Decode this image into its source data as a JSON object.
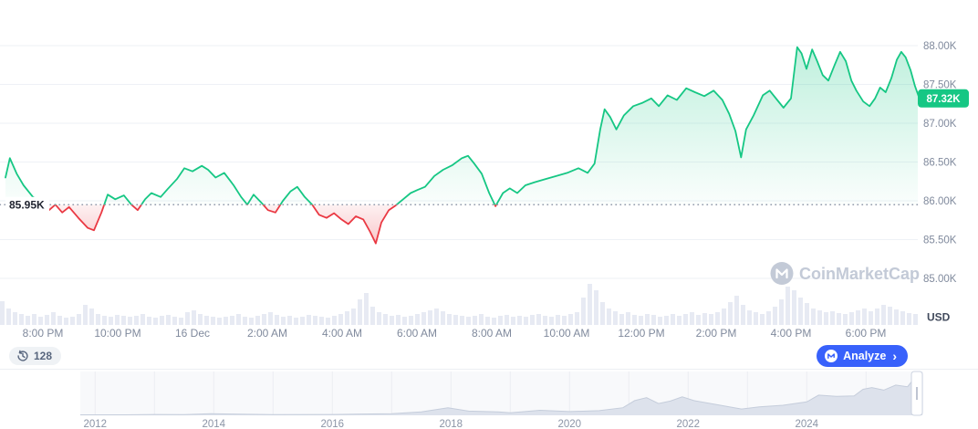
{
  "header": {
    "watermark_text": "CoinMarketCap"
  },
  "price_line": {
    "current_label": "87.32K",
    "baseline_label": "85.95K"
  },
  "axis": {
    "y_labels": [
      "88.00K",
      "87.50K",
      "87.00K",
      "86.50K",
      "86.00K",
      "85.50K",
      "85.00K"
    ],
    "y_values": [
      88,
      87.5,
      87,
      86.5,
      86,
      85.5,
      85
    ],
    "unit_label": "USD",
    "x_labels": [
      "8:00 PM",
      "10:00 PM",
      "16 Dec",
      "2:00 AM",
      "4:00 AM",
      "6:00 AM",
      "8:00 AM",
      "10:00 AM",
      "12:00 PM",
      "2:00 PM",
      "4:00 PM",
      "6:00 PM"
    ],
    "x_minutes": [
      60,
      180,
      300,
      420,
      540,
      660,
      780,
      900,
      1020,
      1140,
      1260,
      1380
    ]
  },
  "controls": {
    "watch_count": "128",
    "analyze_label": "Analyze",
    "analyze_chevron": "›"
  },
  "minimap": {
    "year_labels": [
      "2012",
      "2014",
      "2016",
      "2018",
      "2020",
      "2022",
      "2024"
    ],
    "year_values": [
      2012,
      2014,
      2016,
      2018,
      2020,
      2022,
      2024
    ]
  },
  "colors": {
    "up": "#16c784",
    "down": "#ea3943",
    "accent_blue": "#3861fb",
    "axis_text": "#808a9d",
    "dark_text": "#222531",
    "volume": "#e7eaf3"
  },
  "chart_data": [
    {
      "type": "line",
      "title": "BTC/USD 24h price",
      "x_unit": "minutes since chart start (19:00, day before 16 Dec)",
      "baseline_value": 85.95,
      "current_value": 87.32,
      "ylim": [
        84.5,
        88.5
      ],
      "points": [
        [
          0,
          86.3
        ],
        [
          7,
          86.55
        ],
        [
          18,
          86.35
        ],
        [
          29,
          86.2
        ],
        [
          44,
          86.05
        ],
        [
          59,
          85.98
        ],
        [
          70,
          85.88
        ],
        [
          80,
          85.95
        ],
        [
          91,
          85.85
        ],
        [
          102,
          85.92
        ],
        [
          117,
          85.78
        ],
        [
          132,
          85.65
        ],
        [
          142,
          85.62
        ],
        [
          154,
          85.85
        ],
        [
          164,
          86.08
        ],
        [
          176,
          86.02
        ],
        [
          190,
          86.07
        ],
        [
          202,
          85.95
        ],
        [
          212,
          85.88
        ],
        [
          224,
          86.02
        ],
        [
          234,
          86.1
        ],
        [
          249,
          86.05
        ],
        [
          260,
          86.15
        ],
        [
          275,
          86.28
        ],
        [
          287,
          86.42
        ],
        [
          300,
          86.38
        ],
        [
          315,
          86.45
        ],
        [
          325,
          86.4
        ],
        [
          337,
          86.3
        ],
        [
          351,
          86.36
        ],
        [
          366,
          86.2
        ],
        [
          378,
          86.05
        ],
        [
          388,
          85.95
        ],
        [
          398,
          86.08
        ],
        [
          410,
          85.98
        ],
        [
          421,
          85.88
        ],
        [
          433,
          85.85
        ],
        [
          445,
          86.0
        ],
        [
          457,
          86.12
        ],
        [
          468,
          86.18
        ],
        [
          480,
          86.05
        ],
        [
          492,
          85.95
        ],
        [
          503,
          85.82
        ],
        [
          515,
          85.78
        ],
        [
          527,
          85.84
        ],
        [
          539,
          85.76
        ],
        [
          550,
          85.7
        ],
        [
          562,
          85.8
        ],
        [
          574,
          85.76
        ],
        [
          585,
          85.6
        ],
        [
          594,
          85.45
        ],
        [
          603,
          85.72
        ],
        [
          615,
          85.88
        ],
        [
          626,
          85.94
        ],
        [
          638,
          86.02
        ],
        [
          650,
          86.1
        ],
        [
          661,
          86.14
        ],
        [
          673,
          86.18
        ],
        [
          688,
          86.32
        ],
        [
          702,
          86.4
        ],
        [
          717,
          86.46
        ],
        [
          732,
          86.55
        ],
        [
          742,
          86.58
        ],
        [
          752,
          86.48
        ],
        [
          764,
          86.35
        ],
        [
          776,
          86.1
        ],
        [
          786,
          85.93
        ],
        [
          798,
          86.1
        ],
        [
          809,
          86.16
        ],
        [
          821,
          86.1
        ],
        [
          834,
          86.2
        ],
        [
          849,
          86.24
        ],
        [
          866,
          86.28
        ],
        [
          884,
          86.32
        ],
        [
          901,
          86.36
        ],
        [
          919,
          86.42
        ],
        [
          934,
          86.36
        ],
        [
          945,
          86.48
        ],
        [
          954,
          86.92
        ],
        [
          961,
          87.18
        ],
        [
          970,
          87.08
        ],
        [
          980,
          86.92
        ],
        [
          992,
          87.1
        ],
        [
          1007,
          87.22
        ],
        [
          1021,
          87.26
        ],
        [
          1036,
          87.32
        ],
        [
          1048,
          87.22
        ],
        [
          1062,
          87.36
        ],
        [
          1077,
          87.3
        ],
        [
          1092,
          87.45
        ],
        [
          1106,
          87.4
        ],
        [
          1121,
          87.35
        ],
        [
          1136,
          87.42
        ],
        [
          1150,
          87.3
        ],
        [
          1161,
          87.12
        ],
        [
          1171,
          86.9
        ],
        [
          1180,
          86.56
        ],
        [
          1188,
          86.92
        ],
        [
          1200,
          87.1
        ],
        [
          1215,
          87.36
        ],
        [
          1226,
          87.42
        ],
        [
          1238,
          87.3
        ],
        [
          1248,
          87.2
        ],
        [
          1260,
          87.32
        ],
        [
          1270,
          87.98
        ],
        [
          1277,
          87.9
        ],
        [
          1285,
          87.7
        ],
        [
          1294,
          87.95
        ],
        [
          1302,
          87.8
        ],
        [
          1311,
          87.62
        ],
        [
          1320,
          87.55
        ],
        [
          1330,
          87.75
        ],
        [
          1339,
          87.92
        ],
        [
          1348,
          87.8
        ],
        [
          1357,
          87.55
        ],
        [
          1365,
          87.42
        ],
        [
          1376,
          87.28
        ],
        [
          1386,
          87.22
        ],
        [
          1395,
          87.32
        ],
        [
          1403,
          87.46
        ],
        [
          1412,
          87.4
        ],
        [
          1421,
          87.58
        ],
        [
          1430,
          87.82
        ],
        [
          1437,
          87.92
        ],
        [
          1444,
          87.85
        ],
        [
          1452,
          87.68
        ],
        [
          1459,
          87.48
        ],
        [
          1466,
          87.32
        ]
      ]
    },
    {
      "type": "bar",
      "title": "Volume (relative height, px)",
      "values": [
        26,
        18,
        14,
        12,
        10,
        12,
        9,
        11,
        14,
        10,
        8,
        9,
        12,
        22,
        18,
        12,
        10,
        9,
        11,
        10,
        9,
        10,
        12,
        9,
        8,
        10,
        11,
        9,
        8,
        14,
        16,
        12,
        10,
        9,
        8,
        9,
        10,
        12,
        9,
        8,
        10,
        12,
        14,
        11,
        9,
        10,
        8,
        9,
        11,
        10,
        9,
        8,
        10,
        12,
        15,
        18,
        28,
        35,
        20,
        14,
        12,
        10,
        11,
        9,
        10,
        12,
        14,
        16,
        18,
        15,
        12,
        11,
        10,
        9,
        10,
        12,
        9,
        8,
        10,
        11,
        9,
        10,
        9,
        11,
        12,
        10,
        9,
        11,
        10,
        12,
        14,
        30,
        45,
        38,
        25,
        18,
        15,
        12,
        14,
        11,
        10,
        12,
        11,
        9,
        10,
        12,
        10,
        12,
        14,
        11,
        13,
        12,
        14,
        18,
        25,
        32,
        22,
        16,
        14,
        12,
        15,
        20,
        28,
        42,
        38,
        30,
        24,
        18,
        16,
        14,
        15,
        13,
        12,
        14,
        16,
        18,
        15,
        18,
        22,
        20,
        17,
        15,
        13,
        12
      ]
    },
    {
      "type": "area",
      "title": "All-time price minimap",
      "x_unit": "year",
      "points": [
        [
          2011.75,
          1
        ],
        [
          2012.5,
          1
        ],
        [
          2013.0,
          2
        ],
        [
          2013.5,
          1.5
        ],
        [
          2013.95,
          4
        ],
        [
          2014.3,
          3
        ],
        [
          2015,
          1.5
        ],
        [
          2016,
          2
        ],
        [
          2016.5,
          3
        ],
        [
          2017.0,
          4
        ],
        [
          2017.5,
          8
        ],
        [
          2017.95,
          18
        ],
        [
          2018.3,
          10
        ],
        [
          2018.8,
          8
        ],
        [
          2019.0,
          6
        ],
        [
          2019.5,
          12
        ],
        [
          2020.0,
          9
        ],
        [
          2020.5,
          11
        ],
        [
          2020.9,
          18
        ],
        [
          2021.1,
          35
        ],
        [
          2021.3,
          42
        ],
        [
          2021.5,
          28
        ],
        [
          2021.7,
          34
        ],
        [
          2021.9,
          44
        ],
        [
          2022.1,
          35
        ],
        [
          2022.5,
          25
        ],
        [
          2022.9,
          15
        ],
        [
          2023.2,
          20
        ],
        [
          2023.6,
          24
        ],
        [
          2024.0,
          32
        ],
        [
          2024.2,
          48
        ],
        [
          2024.5,
          45
        ],
        [
          2024.8,
          46
        ],
        [
          2024.95,
          62
        ],
        [
          2025.1,
          66
        ],
        [
          2025.3,
          60
        ],
        [
          2025.5,
          72
        ],
        [
          2025.7,
          68
        ],
        [
          2025.85,
          95
        ],
        [
          2025.95,
          85
        ]
      ]
    }
  ]
}
